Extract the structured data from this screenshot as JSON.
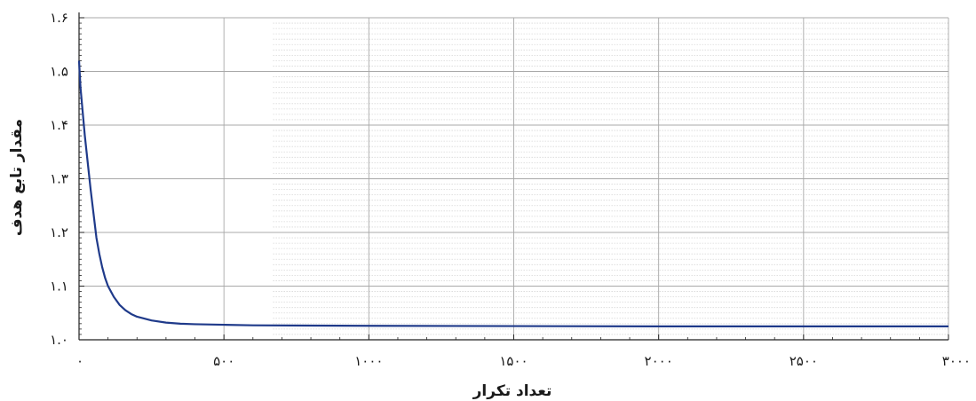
{
  "chart_data": {
    "type": "line",
    "xlabel": "تعداد تکرار",
    "ylabel": "مقدار تابع هدف",
    "xlim": [
      0,
      3000
    ],
    "ylim": [
      1.0,
      1.6
    ],
    "x_ticks": [
      0,
      500,
      1000,
      1500,
      2000,
      2500,
      3000
    ],
    "x_tick_labels": [
      "۰",
      "۵۰۰",
      "۱۰۰۰",
      "۱۵۰۰",
      "۲۰۰۰",
      "۲۵۰۰",
      "۳۰۰۰"
    ],
    "y_ticks": [
      1.0,
      1.1,
      1.2,
      1.3,
      1.4,
      1.5,
      1.6
    ],
    "y_tick_labels": [
      "۱.۰",
      "۱.۱",
      "۱.۲",
      "۱.۳",
      "۱.۴",
      "۱.۵",
      "۱.۶"
    ],
    "grid": true,
    "minor_grid": true,
    "line_color": "#1f3a8a",
    "series": [
      {
        "x": [
          0,
          5,
          10,
          20,
          30,
          40,
          50,
          60,
          70,
          80,
          90,
          100,
          120,
          140,
          160,
          180,
          200,
          250,
          300,
          350,
          400,
          500,
          600,
          800,
          1000,
          1500,
          2000,
          2500,
          3000
        ],
        "y": [
          1.52,
          1.47,
          1.44,
          1.38,
          1.33,
          1.28,
          1.235,
          1.19,
          1.16,
          1.135,
          1.115,
          1.1,
          1.08,
          1.065,
          1.055,
          1.048,
          1.043,
          1.036,
          1.032,
          1.03,
          1.029,
          1.028,
          1.027,
          1.0265,
          1.026,
          1.0255,
          1.025,
          1.025,
          1.025
        ]
      }
    ]
  }
}
